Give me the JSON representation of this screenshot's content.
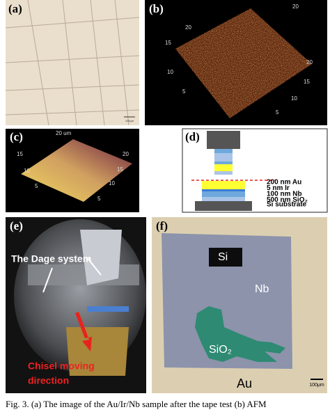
{
  "panel_a": {
    "label": "(a)",
    "scale_bar": "100μm"
  },
  "panel_b": {
    "label": "(b)",
    "axis_labels": [
      "20",
      "15",
      "10",
      "5",
      "20",
      "15",
      "10",
      "5",
      "20"
    ]
  },
  "panel_c": {
    "label": "(c)",
    "axis_labels": [
      "20 um",
      "15",
      "10",
      "5",
      "20",
      "15",
      "10",
      "5"
    ]
  },
  "panel_d": {
    "label": "(d)",
    "layers": [
      "200 nm Au",
      "5 nm Ir",
      "100 nm Nb",
      "500 nm SiO₂"
    ],
    "substrate": "Si substrate"
  },
  "panel_e": {
    "label": "(e)",
    "annotations": [
      "The Dage system",
      "Chisel moving",
      "direction"
    ]
  },
  "panel_f": {
    "label": "(f)",
    "regions": [
      "Si",
      "Nb",
      "SiO₂",
      "Au"
    ],
    "scale_bar": "100μm"
  },
  "caption": "Fig. 3. (a) The image of the Au/Ir/Nb sample after the tape test (b) AFM"
}
